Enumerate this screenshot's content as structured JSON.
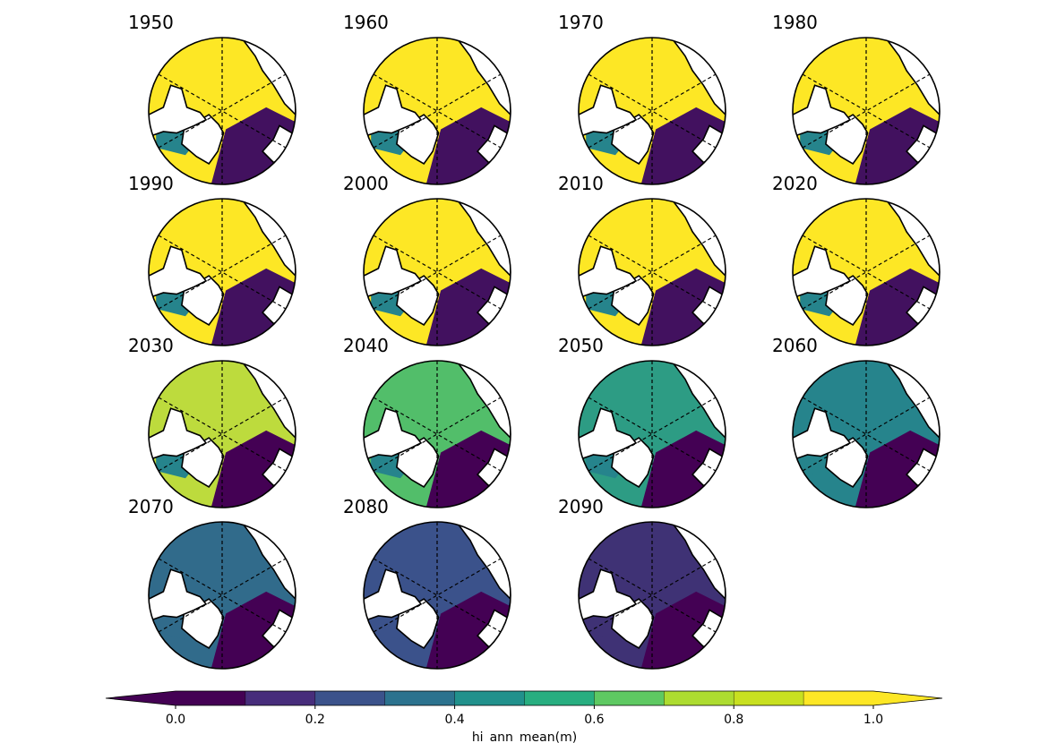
{
  "panels": [
    {
      "year": "1950"
    },
    {
      "year": "1960"
    },
    {
      "year": "1970"
    },
    {
      "year": "1980"
    },
    {
      "year": "1990"
    },
    {
      "year": "2000"
    },
    {
      "year": "2010"
    },
    {
      "year": "2020"
    },
    {
      "year": "2030"
    },
    {
      "year": "2040"
    },
    {
      "year": "2050"
    },
    {
      "year": "2060"
    },
    {
      "year": "2070"
    },
    {
      "year": "2080"
    },
    {
      "year": "2090"
    }
  ],
  "panel_state": [
    {
      "pacific": 1.0,
      "atlantic": 0.05
    },
    {
      "pacific": 1.0,
      "atlantic": 0.05
    },
    {
      "pacific": 1.0,
      "atlantic": 0.05
    },
    {
      "pacific": 1.0,
      "atlantic": 0.05
    },
    {
      "pacific": 1.0,
      "atlantic": 0.05
    },
    {
      "pacific": 1.0,
      "atlantic": 0.05
    },
    {
      "pacific": 1.0,
      "atlantic": 0.05
    },
    {
      "pacific": 1.0,
      "atlantic": 0.05
    },
    {
      "pacific": 0.9,
      "atlantic": 0.0
    },
    {
      "pacific": 0.7,
      "atlantic": 0.0
    },
    {
      "pacific": 0.55,
      "atlantic": 0.0
    },
    {
      "pacific": 0.45,
      "atlantic": 0.0
    },
    {
      "pacific": 0.35,
      "atlantic": 0.0
    },
    {
      "pacific": 0.25,
      "atlantic": 0.0
    },
    {
      "pacific": 0.15,
      "atlantic": 0.0
    }
  ],
  "colorbar": {
    "label": "hi_ann_mean(m)",
    "ticks": [
      "0.0",
      "0.2",
      "0.4",
      "0.6",
      "0.8",
      "1.0"
    ],
    "levels": [
      0.0,
      0.1,
      0.2,
      0.3,
      0.4,
      0.5,
      0.6,
      0.7,
      0.8,
      0.9,
      1.0
    ],
    "extend": "both",
    "colors": [
      "#440154",
      "#472d7b",
      "#3b528b",
      "#2c728e",
      "#21918c",
      "#28ae80",
      "#5ec962",
      "#addc30",
      "#c8e020",
      "#fde725"
    ],
    "under_color": "#440154",
    "over_color": "#fde725"
  },
  "colormap": "viridis",
  "projection": "north-polar-stereographic"
}
